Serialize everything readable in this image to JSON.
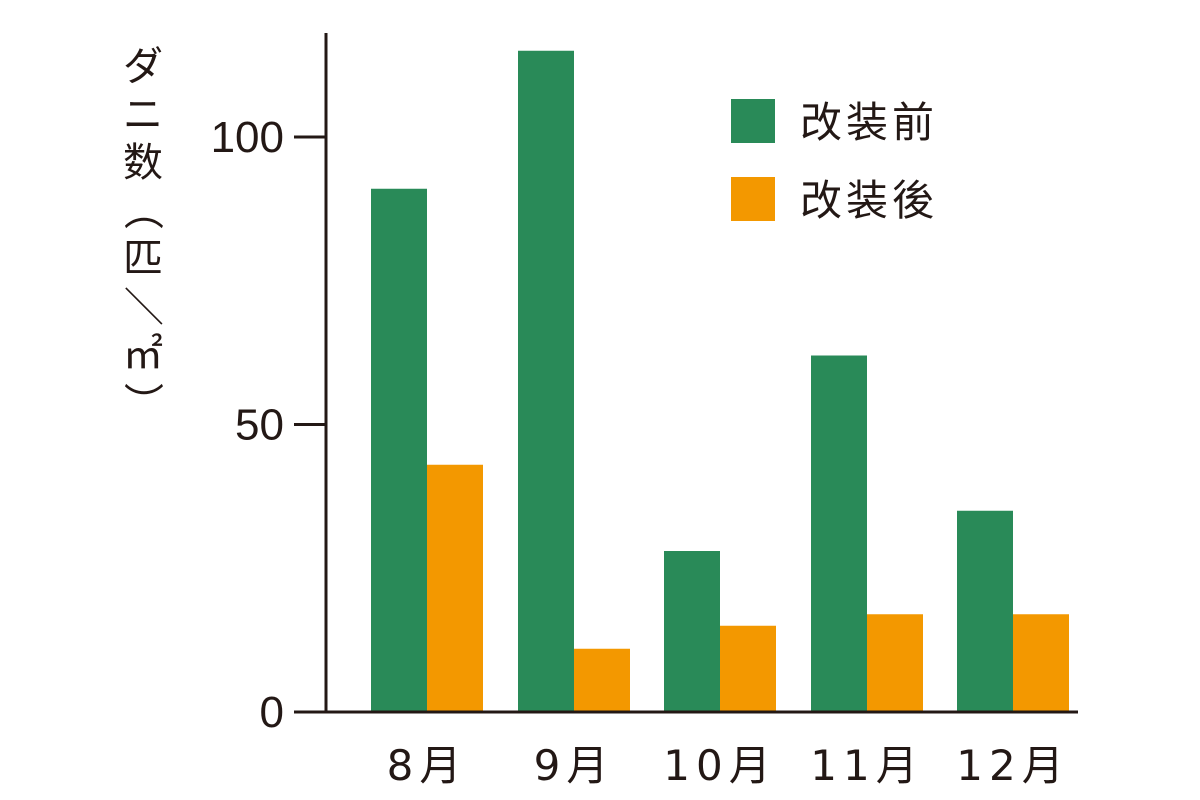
{
  "chart_data": {
    "type": "bar",
    "categories": [
      "8月",
      "9月",
      "10月",
      "11月",
      "12月"
    ],
    "series": [
      {
        "name": "改装前",
        "values": [
          91,
          115,
          28,
          62,
          35
        ],
        "color": "#298a58"
      },
      {
        "name": "改装後",
        "values": [
          43,
          11,
          15,
          17,
          17
        ],
        "color": "#f39800"
      }
    ],
    "title": "",
    "xlabel": "",
    "ylabel": "ダニ数（匹／㎡）",
    "ylim": [
      0,
      118
    ],
    "yticks": [
      0,
      50,
      100
    ],
    "grid": false,
    "legend_position": "top-right"
  }
}
